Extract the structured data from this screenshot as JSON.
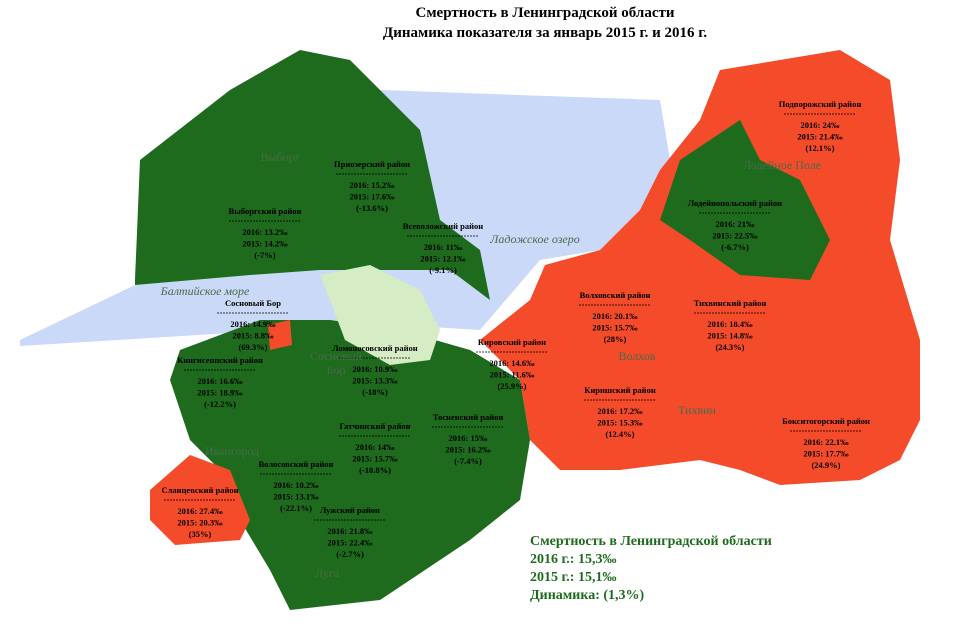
{
  "title": [
    "Смертность в Ленинградской области",
    "Динамика показателя за январь 2015 г. и 2016 г."
  ],
  "districts": [
    {
      "name": "Приозерский район",
      "y2016": "2016: 15.2‰",
      "y2015": "2015: 17.6‰",
      "change": "(-13.6%)"
    },
    {
      "name": "Выборгский район",
      "y2016": "2016: 13.2‰",
      "y2015": "2015: 14.2‰",
      "change": "(-7%)"
    },
    {
      "name": "Всеволожский район",
      "y2016": "2016: 11‰",
      "y2015": "2015: 12.1‰",
      "change": "(-9.1%)"
    },
    {
      "name": "Сосновый Бор",
      "y2016": "2016: 14.9‰",
      "y2015": "2015: 8.8‰",
      "change": "(69.3%)"
    },
    {
      "name": "Ломоносовский район",
      "y2016": "2016: 10.9‰",
      "y2015": "2015: 13.3‰",
      "change": "(-18%)"
    },
    {
      "name": "Кингисеппский район",
      "y2016": "2016: 16.6‰",
      "y2015": "2015: 18.9‰",
      "change": "(-12.2%)"
    },
    {
      "name": "Гатчинский район",
      "y2016": "2016: 14‰",
      "y2015": "2015: 15.7‰",
      "change": "(-10.8%)"
    },
    {
      "name": "Тосненский район",
      "y2016": "2016: 15‰",
      "y2015": "2015: 16.2‰",
      "change": "(-7.4%)"
    },
    {
      "name": "Волосовский район",
      "y2016": "2016: 10.2‰",
      "y2015": "2015: 13.1‰",
      "change": "(-22.1%)"
    },
    {
      "name": "Сланцевский район",
      "y2016": "2016: 27.4‰",
      "y2015": "2015: 20.3‰",
      "change": "(35%)"
    },
    {
      "name": "Лужский район",
      "y2016": "2016: 21.8‰",
      "y2015": "2015: 22.4‰",
      "change": "(-2.7%)"
    },
    {
      "name": "Кировский район",
      "y2016": "2016: 14.6‰",
      "y2015": "2015: 11.6‰",
      "change": "(25.9%)"
    },
    {
      "name": "Волховский район",
      "y2016": "2016: 20.1‰",
      "y2015": "2015: 15.7‰",
      "change": "(28%)"
    },
    {
      "name": "Тихвинский район",
      "y2016": "2016: 18.4‰",
      "y2015": "2015: 14.8‰",
      "change": "(24.3%)"
    },
    {
      "name": "Киришский район",
      "y2016": "2016: 17.2‰",
      "y2015": "2015: 15.3‰",
      "change": "(12.4%)"
    },
    {
      "name": "Бокситогорский район",
      "y2016": "2016: 22.1‰",
      "y2015": "2015: 17.7‰",
      "change": "(24.9%)"
    },
    {
      "name": "Подпорожский район",
      "y2016": "2016: 24‰",
      "y2015": "2015: 21.4‰",
      "change": "(12.1%)"
    },
    {
      "name": "Лодейнопольский район",
      "y2016": "2016: 21‰",
      "y2015": "2015: 22.5‰",
      "change": "(-6.7%)"
    }
  ],
  "places": [
    "Выборг",
    "Ладожское озеро",
    "Балтийское море",
    "Лодейное Поле",
    "Волхов",
    "Тихвин",
    "Сосновый",
    "Бор",
    "Ивангород",
    "Луга"
  ],
  "summary": [
    "Смертность в Ленинградской области",
    "2016 г.: 15,3‰",
    "2015 г.: 15,1‰",
    "Динамика: (1,3%)"
  ]
}
